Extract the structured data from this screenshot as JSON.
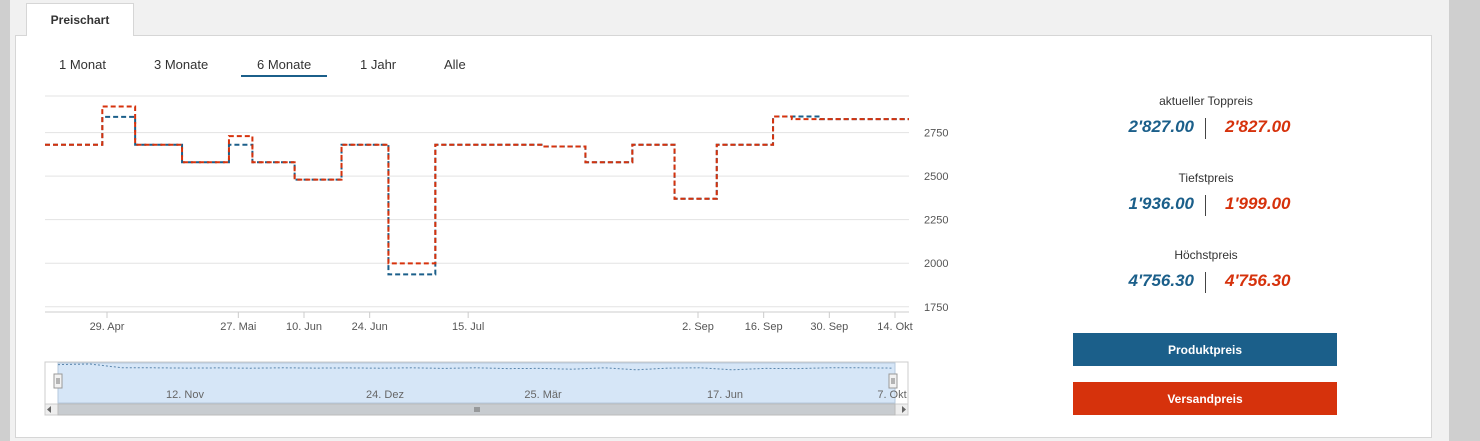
{
  "tab": {
    "label": "Preischart"
  },
  "range_buttons": [
    "1 Monat",
    "3 Monate",
    "6 Monate",
    "1 Jahr",
    "Alle"
  ],
  "active_range": "6 Monate",
  "stats": [
    {
      "label": "aktueller Toppreis",
      "product": "2'827.00",
      "shipping": "2'827.00"
    },
    {
      "label": "Tiefstpreis",
      "product": "1'936.00",
      "shipping": "1'999.00"
    },
    {
      "label": "Höchstpreis",
      "product": "4'756.30",
      "shipping": "4'756.30"
    }
  ],
  "buttons": {
    "product": "Produktpreis",
    "shipping": "Versandpreis"
  },
  "colors": {
    "product": "#1b5f8a",
    "shipping": "#d6320c",
    "grid": "#e3e3e3",
    "navigator_fill": "#d6e6f7"
  },
  "chart_data": {
    "type": "line",
    "step": true,
    "title": "",
    "xlabel": "",
    "ylabel": "",
    "ylim": [
      1720,
      2960
    ],
    "y_ticks": [
      1750,
      2000,
      2250,
      2500,
      2750
    ],
    "x_tick_labels": [
      "29. Apr",
      "27. Mai",
      "10. Jun",
      "24. Jun",
      "15. Jul",
      "2. Sep",
      "16. Sep",
      "30. Sep",
      "14. Okt"
    ],
    "legend": "none",
    "grid": true,
    "series": [
      {
        "name": "Produktpreis",
        "points": [
          [
            "20. Apr",
            2680
          ],
          [
            "28. Apr",
            2840
          ],
          [
            "5. Mai",
            2680
          ],
          [
            "15. Mai",
            2580
          ],
          [
            "25. Mai",
            2680
          ],
          [
            "30. Mai",
            2580
          ],
          [
            "8. Jun",
            2480
          ],
          [
            "18. Jun",
            2680
          ],
          [
            "28. Jun",
            1936
          ],
          [
            "8. Jul",
            2680
          ],
          [
            "31. Jul",
            2670
          ],
          [
            "9. Aug",
            2580
          ],
          [
            "19. Aug",
            2680
          ],
          [
            "28. Aug",
            2370
          ],
          [
            "6. Sep",
            2680
          ],
          [
            "18. Sep",
            2842
          ],
          [
            "28. Sep",
            2827
          ]
        ]
      },
      {
        "name": "Versandpreis",
        "points": [
          [
            "20. Apr",
            2680
          ],
          [
            "28. Apr",
            2900
          ],
          [
            "5. Mai",
            2680
          ],
          [
            "15. Mai",
            2580
          ],
          [
            "25. Mai",
            2730
          ],
          [
            "30. Mai",
            2580
          ],
          [
            "8. Jun",
            2480
          ],
          [
            "18. Jun",
            2680
          ],
          [
            "28. Jun",
            1999
          ],
          [
            "8. Jul",
            2680
          ],
          [
            "31. Jul",
            2670
          ],
          [
            "9. Aug",
            2580
          ],
          [
            "19. Aug",
            2680
          ],
          [
            "28. Aug",
            2370
          ],
          [
            "6. Sep",
            2680
          ],
          [
            "18. Sep",
            2842
          ],
          [
            "22. Sep",
            2827
          ]
        ]
      }
    ],
    "navigator": {
      "x_tick_labels": [
        "12. Nov",
        "24. Dez",
        "25. Mär",
        "17. Jun",
        "7. Okt"
      ],
      "values": [
        2940,
        2960,
        2830,
        2830,
        2820,
        2825,
        2815,
        2830,
        2820,
        2825,
        2815,
        2830,
        2810,
        2830,
        2800,
        2810,
        2780,
        2830,
        2760,
        2820,
        2830,
        2760,
        2810,
        2800,
        2830,
        2830,
        2820
      ]
    }
  }
}
